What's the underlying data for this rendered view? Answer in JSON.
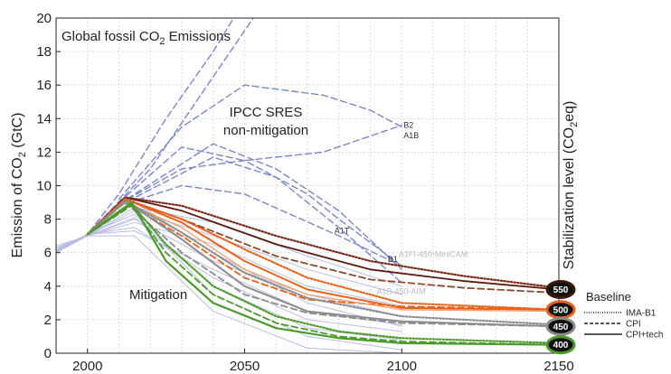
{
  "chart_data": {
    "type": "line",
    "xlim": [
      1990,
      2150
    ],
    "ylim": [
      0,
      20
    ],
    "x_ticks": [
      2000,
      2050,
      2100,
      2150
    ],
    "y_ticks": [
      0,
      2,
      4,
      6,
      8,
      10,
      12,
      14,
      16,
      18,
      20
    ],
    "x_minor_step": 10,
    "grid": true,
    "ylabel_pre": "Emission of CO",
    "ylabel_sub": "2",
    "ylabel_post": " (GtC)",
    "right_label_pre": "Stabilization level (CO",
    "right_label_sub": "2",
    "right_label_post": "eq)",
    "title_pre": "Global fossil CO",
    "title_sub": "2",
    "title_post": " Emissions",
    "annotation_sres_1": "IPCC SRES",
    "annotation_sres_2": "non-mitigation",
    "annotation_mitigation": "Mitigation",
    "sres_labels": [
      {
        "text": "B2",
        "x": 2100,
        "y": 13.6
      },
      {
        "text": "A1B",
        "x": 2100,
        "y": 13.0
      },
      {
        "text": "A1T",
        "x": 2078,
        "y": 7.3
      },
      {
        "text": "B1",
        "x": 2095,
        "y": 5.6
      }
    ],
    "faint_labels": [
      {
        "text": "A1FI-450-MiniCAM",
        "x": 2099,
        "y": 5.9
      },
      {
        "text": "A1B-450-AIM",
        "x": 2092,
        "y": 3.7
      }
    ],
    "legend": {
      "title": "Baseline",
      "items": [
        {
          "label": "IMA-B1",
          "style": "dotted"
        },
        {
          "label": "CPI",
          "style": "dashed"
        },
        {
          "label": "CPI+tech",
          "style": "solid"
        }
      ]
    },
    "badges": [
      {
        "label": "550",
        "y": 3.8,
        "ring": "#3a1808"
      },
      {
        "label": "500",
        "y": 2.6,
        "ring": "#e8621c"
      },
      {
        "label": "450",
        "y": 1.6,
        "ring": "#8c8c8c"
      },
      {
        "label": "400",
        "y": 0.5,
        "ring": "#4c9a2c"
      }
    ],
    "series": [
      {
        "group": "sres",
        "color": "#7a86cc",
        "style": "dashed",
        "width": 1.4,
        "x": [
          1990,
          2000,
          2020,
          2040,
          2060
        ],
        "y": [
          6.0,
          7.1,
          11.0,
          16.5,
          22.0
        ]
      },
      {
        "group": "sres",
        "color": "#7a86cc",
        "style": "dashed",
        "width": 1.4,
        "x": [
          1990,
          2000,
          2010,
          2025,
          2040,
          2053
        ],
        "y": [
          6.0,
          7.1,
          9.5,
          14.0,
          18.0,
          22.0
        ]
      },
      {
        "group": "sres",
        "color": "#7a86cc",
        "style": "dashed",
        "width": 1.4,
        "x": [
          2010,
          2030,
          2050,
          2075,
          2090,
          2100
        ],
        "y": [
          9.2,
          13.5,
          16.0,
          15.4,
          14.5,
          13.5
        ]
      },
      {
        "group": "sres",
        "color": "#7a86cc",
        "style": "dashed",
        "width": 1.4,
        "x": [
          2010,
          2030,
          2050,
          2075,
          2100
        ],
        "y": [
          9.0,
          12.3,
          11.5,
          12.0,
          13.6
        ]
      },
      {
        "group": "sres",
        "color": "#7a86cc",
        "style": "dashed",
        "width": 1.4,
        "x": [
          2010,
          2040,
          2060,
          2080,
          2100
        ],
        "y": [
          8.9,
          12.5,
          11.0,
          8.5,
          5.0
        ]
      },
      {
        "group": "sres",
        "color": "#7a86cc",
        "style": "dashed",
        "width": 1.4,
        "x": [
          2010,
          2040,
          2060,
          2080,
          2100
        ],
        "y": [
          8.8,
          11.7,
          10.5,
          7.5,
          4.2
        ]
      },
      {
        "group": "sres",
        "color": "#7a86cc",
        "style": "dashed",
        "width": 1.4,
        "x": [
          2010,
          2030,
          2050,
          2070,
          2080,
          2100
        ],
        "y": [
          8.9,
          11.0,
          11.5,
          9.5,
          8.0,
          5.2
        ]
      },
      {
        "group": "sres",
        "color": "#7a86cc",
        "style": "dashed",
        "width": 1.4,
        "x": [
          2010,
          2030,
          2050,
          2080,
          2100
        ],
        "y": [
          8.8,
          10.0,
          9.5,
          7.0,
          5.2
        ]
      },
      {
        "group": "faint",
        "color": "#b8bce2",
        "style": "solid",
        "width": 1,
        "x": [
          1990,
          2000,
          2015,
          2040,
          2070,
          2100
        ],
        "y": [
          6.3,
          7.0,
          8.5,
          7.0,
          5.0,
          3.5
        ]
      },
      {
        "group": "faint",
        "color": "#b8bce2",
        "style": "solid",
        "width": 1,
        "x": [
          1990,
          2000,
          2015,
          2040,
          2070,
          2100
        ],
        "y": [
          6.0,
          7.0,
          8.0,
          5.5,
          3.5,
          2.2
        ]
      },
      {
        "group": "faint",
        "color": "#b8bce2",
        "style": "solid",
        "width": 1,
        "x": [
          1990,
          2000,
          2015,
          2040,
          2070,
          2100
        ],
        "y": [
          6.2,
          7.1,
          7.5,
          4.5,
          2.0,
          1.3
        ]
      },
      {
        "group": "faint",
        "color": "#b8bce2",
        "style": "solid",
        "width": 1,
        "x": [
          1990,
          2000,
          2015,
          2040,
          2070,
          2100
        ],
        "y": [
          6.4,
          7.0,
          9.0,
          6.0,
          3.0,
          1.6
        ]
      },
      {
        "group": "faint",
        "color": "#b8bce2",
        "style": "solid",
        "width": 1,
        "x": [
          1990,
          2000,
          2015,
          2040,
          2070,
          2100
        ],
        "y": [
          6.1,
          7.1,
          8.3,
          3.5,
          1.0,
          0.2
        ]
      },
      {
        "group": "faint",
        "color": "#b8bce2",
        "style": "solid",
        "width": 1,
        "x": [
          1990,
          2000,
          2015,
          2040,
          2070,
          2100
        ],
        "y": [
          6.2,
          7.0,
          7.0,
          2.5,
          0.3,
          0.0
        ]
      },
      {
        "group": "faint",
        "color": "#b8bce2",
        "style": "solid",
        "width": 1,
        "x": [
          1990,
          2000,
          2015,
          2040,
          2070,
          2100
        ],
        "y": [
          6.1,
          7.0,
          7.8,
          6.5,
          4.0,
          2.8
        ]
      },
      {
        "group": "faint",
        "color": "#b8bce2",
        "style": "solid",
        "width": 1,
        "x": [
          1990,
          2000,
          2015,
          2040,
          2070,
          2100
        ],
        "y": [
          6.3,
          7.0,
          8.7,
          7.8,
          5.8,
          4.0
        ]
      },
      {
        "group": "faint",
        "color": "#b8bce2",
        "style": "solid",
        "width": 1,
        "x": [
          1990,
          2000,
          2015,
          2040,
          2070,
          2100
        ],
        "y": [
          6.0,
          7.1,
          7.3,
          5.0,
          2.5,
          1.7
        ]
      },
      {
        "group": "faint",
        "color": "#b8bce2",
        "style": "solid",
        "width": 1,
        "x": [
          1990,
          2000,
          2015,
          2040,
          2070,
          2100
        ],
        "y": [
          6.2,
          7.0,
          8.1,
          4.0,
          1.5,
          0.8
        ]
      },
      {
        "group": "550",
        "color": "#5a1a10",
        "style": "solid",
        "width": 1.8,
        "x": [
          2000,
          2012,
          2030,
          2060,
          2090,
          2120,
          2150
        ],
        "y": [
          7.1,
          9.3,
          8.5,
          6.5,
          5.0,
          4.3,
          3.8
        ]
      },
      {
        "group": "550",
        "color": "#7a2a18",
        "style": "dotted",
        "width": 2.2,
        "x": [
          2000,
          2012,
          2030,
          2060,
          2090,
          2120,
          2150
        ],
        "y": [
          7.1,
          9.3,
          8.8,
          7.0,
          5.5,
          4.6,
          3.9
        ]
      },
      {
        "group": "550",
        "color": "#8a4a30",
        "style": "dashed",
        "width": 1.8,
        "x": [
          2000,
          2012,
          2030,
          2060,
          2090,
          2120,
          2150
        ],
        "y": [
          7.1,
          9.2,
          8.0,
          5.8,
          4.4,
          3.9,
          3.6
        ]
      },
      {
        "group": "500",
        "color": "#e8621c",
        "style": "solid",
        "width": 2.0,
        "x": [
          2000,
          2012,
          2030,
          2050,
          2070,
          2100,
          2150
        ],
        "y": [
          7.1,
          9.2,
          7.8,
          5.5,
          3.8,
          2.7,
          2.6
        ]
      },
      {
        "group": "500",
        "color": "#e8621c",
        "style": "dotted",
        "width": 2.2,
        "x": [
          2000,
          2012,
          2030,
          2050,
          2070,
          2100,
          2150
        ],
        "y": [
          7.1,
          9.2,
          8.0,
          6.2,
          4.5,
          3.0,
          2.6
        ]
      },
      {
        "group": "500",
        "color": "#e8621c",
        "style": "dashed",
        "width": 1.8,
        "x": [
          2000,
          2012,
          2030,
          2050,
          2070,
          2100,
          2150
        ],
        "y": [
          7.1,
          9.0,
          7.0,
          4.5,
          3.2,
          2.8,
          2.6
        ]
      },
      {
        "group": "500",
        "color": "#f0a070",
        "style": "solid",
        "width": 1.4,
        "x": [
          2000,
          2012,
          2030,
          2050,
          2070,
          2100,
          2150
        ],
        "y": [
          7.1,
          9.0,
          7.5,
          5.0,
          3.5,
          2.6,
          2.5
        ]
      },
      {
        "group": "450",
        "color": "#8c8c8c",
        "style": "solid",
        "width": 2.0,
        "x": [
          2000,
          2012,
          2030,
          2050,
          2070,
          2100,
          2150
        ],
        "y": [
          7.1,
          9.1,
          6.8,
          4.0,
          2.5,
          1.9,
          1.6
        ]
      },
      {
        "group": "450",
        "color": "#8c8c8c",
        "style": "dotted",
        "width": 2.2,
        "x": [
          2000,
          2012,
          2030,
          2050,
          2070,
          2100,
          2150
        ],
        "y": [
          7.1,
          9.1,
          7.2,
          4.8,
          3.3,
          2.2,
          1.7
        ]
      },
      {
        "group": "450",
        "color": "#8c8c8c",
        "style": "dashed",
        "width": 1.8,
        "x": [
          2000,
          2012,
          2030,
          2050,
          2070,
          2100,
          2150
        ],
        "y": [
          7.1,
          9.0,
          6.0,
          3.5,
          2.4,
          1.8,
          1.6
        ]
      },
      {
        "group": "400",
        "color": "#4c9a2c",
        "style": "solid",
        "width": 2.2,
        "x": [
          2000,
          2014,
          2025,
          2040,
          2060,
          2080,
          2100,
          2150
        ],
        "y": [
          7.1,
          9.0,
          5.5,
          3.0,
          1.5,
          0.9,
          0.6,
          0.5
        ]
      },
      {
        "group": "400",
        "color": "#4c9a2c",
        "style": "dotted",
        "width": 2.2,
        "x": [
          2000,
          2014,
          2025,
          2040,
          2060,
          2080,
          2100,
          2150
        ],
        "y": [
          7.1,
          8.9,
          6.5,
          4.0,
          2.2,
          1.3,
          0.9,
          0.6
        ]
      },
      {
        "group": "400",
        "color": "#4c9a2c",
        "style": "dashed",
        "width": 1.8,
        "x": [
          2000,
          2014,
          2025,
          2040,
          2060,
          2080,
          2100,
          2150
        ],
        "y": [
          7.1,
          8.8,
          6.0,
          3.5,
          1.8,
          1.0,
          0.7,
          0.5
        ]
      }
    ]
  }
}
